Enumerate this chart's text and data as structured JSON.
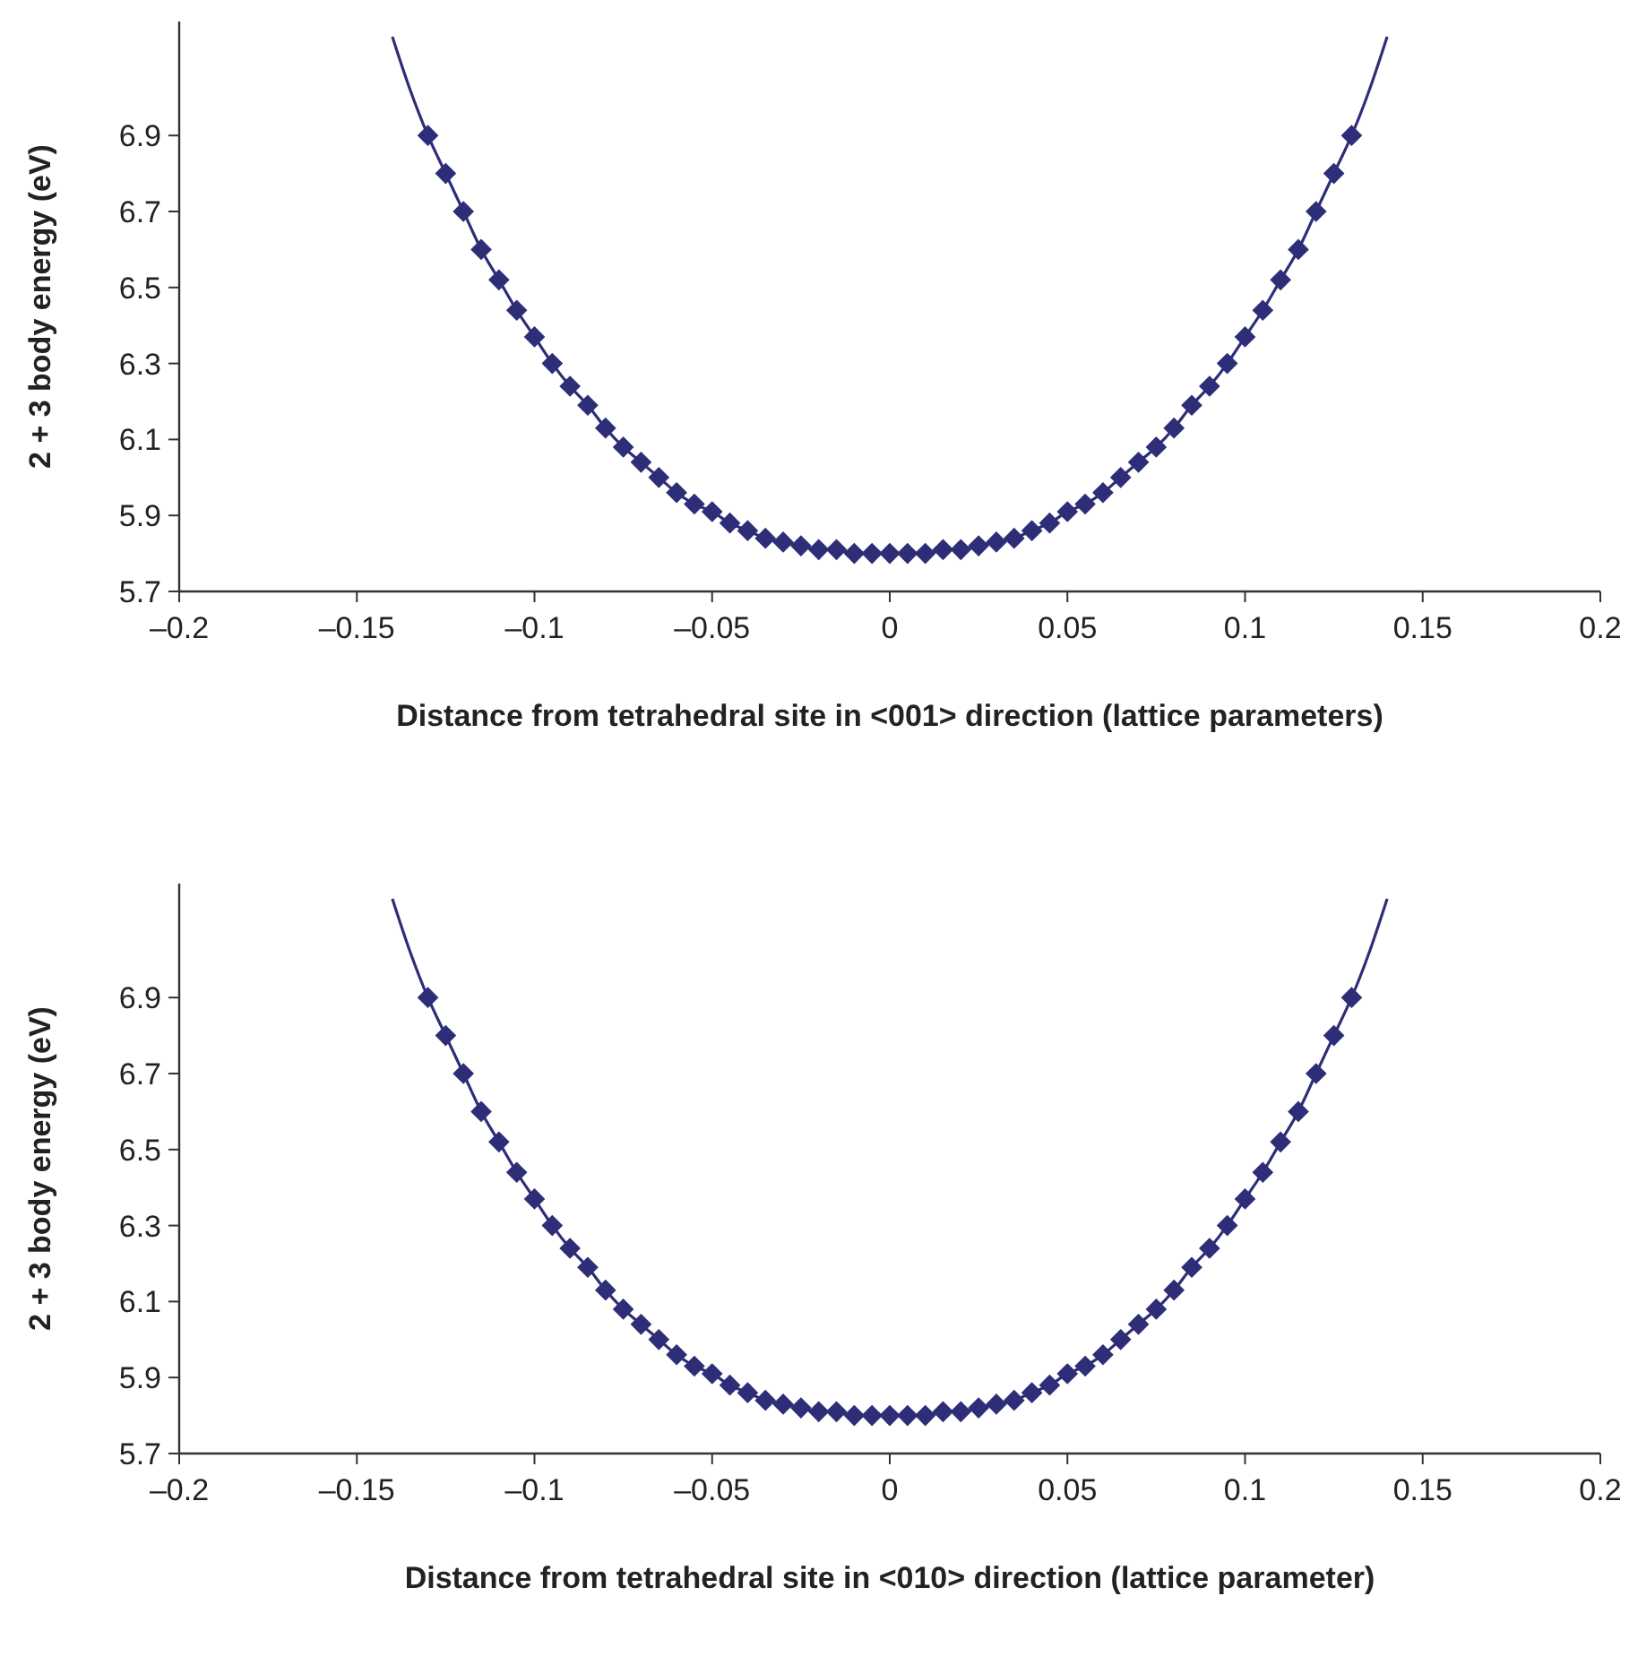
{
  "chart_data": [
    {
      "type": "scatter",
      "xlabel": "Distance from tetrahedral site in <001> direction (lattice parameters)",
      "ylabel": "2 + 3 body energy (eV)",
      "xlim": [
        -0.2,
        0.2
      ],
      "ylim": [
        5.7,
        7.2
      ],
      "xticks": [
        {
          "value": -0.2,
          "label": "–0.2"
        },
        {
          "value": -0.15,
          "label": "–0.15"
        },
        {
          "value": -0.1,
          "label": "–0.1"
        },
        {
          "value": -0.05,
          "label": "–0.05"
        },
        0,
        0.05,
        0.1,
        0.15,
        0.2
      ],
      "yticks": [
        5.7,
        5.9,
        6.1,
        6.3,
        6.5,
        6.7,
        6.9
      ],
      "grid": false,
      "series": [
        {
          "type": "line",
          "color": "#2e2d78",
          "marker": "none",
          "line_style": "solid",
          "x": [
            -0.14,
            -0.135,
            -0.13,
            -0.125,
            -0.12,
            -0.115,
            -0.11,
            -0.105,
            -0.1,
            -0.095,
            -0.09,
            -0.085,
            -0.08,
            -0.075,
            -0.07,
            -0.065,
            -0.06,
            -0.055,
            -0.05,
            -0.045,
            -0.04,
            -0.035,
            -0.03,
            -0.025,
            -0.02,
            -0.015,
            -0.01,
            -0.005,
            0,
            0.005,
            0.01,
            0.015,
            0.02,
            0.025,
            0.03,
            0.035,
            0.04,
            0.045,
            0.05,
            0.055,
            0.06,
            0.065,
            0.07,
            0.075,
            0.08,
            0.085,
            0.09,
            0.095,
            0.1,
            0.105,
            0.11,
            0.115,
            0.12,
            0.125,
            0.13,
            0.135,
            0.14
          ],
          "values": [
            7.16,
            7.02,
            6.9,
            6.8,
            6.7,
            6.6,
            6.52,
            6.44,
            6.37,
            6.3,
            6.24,
            6.19,
            6.13,
            6.08,
            6.04,
            6.0,
            5.96,
            5.93,
            5.91,
            5.88,
            5.86,
            5.84,
            5.83,
            5.82,
            5.81,
            5.81,
            5.8,
            5.8,
            5.8,
            5.8,
            5.8,
            5.81,
            5.81,
            5.82,
            5.83,
            5.84,
            5.86,
            5.88,
            5.91,
            5.93,
            5.96,
            6.0,
            6.04,
            6.08,
            6.13,
            6.19,
            6.24,
            6.3,
            6.37,
            6.44,
            6.52,
            6.6,
            6.7,
            6.8,
            6.9,
            7.02,
            7.16
          ]
        },
        {
          "color": "#2e2d78",
          "marker": "diamond",
          "x": [
            -0.13,
            -0.125,
            -0.12,
            -0.115,
            -0.11,
            -0.105,
            -0.1,
            -0.095,
            -0.09,
            -0.085,
            -0.08,
            -0.075,
            -0.07,
            -0.065,
            -0.06,
            -0.055,
            -0.05,
            -0.045,
            -0.04,
            -0.035,
            -0.03,
            -0.025,
            -0.02,
            -0.015,
            -0.01,
            -0.005,
            0,
            0.005,
            0.01,
            0.015,
            0.02,
            0.025,
            0.03,
            0.035,
            0.04,
            0.045,
            0.05,
            0.055,
            0.06,
            0.065,
            0.07,
            0.075,
            0.08,
            0.085,
            0.09,
            0.095,
            0.1,
            0.105,
            0.11,
            0.115,
            0.12,
            0.125,
            0.13
          ],
          "values": [
            6.9,
            6.8,
            6.7,
            6.6,
            6.52,
            6.44,
            6.37,
            6.3,
            6.24,
            6.19,
            6.13,
            6.08,
            6.04,
            6.0,
            5.96,
            5.93,
            5.91,
            5.88,
            5.86,
            5.84,
            5.83,
            5.82,
            5.81,
            5.81,
            5.8,
            5.8,
            5.8,
            5.8,
            5.8,
            5.81,
            5.81,
            5.82,
            5.83,
            5.84,
            5.86,
            5.88,
            5.91,
            5.93,
            5.96,
            6.0,
            6.04,
            6.08,
            6.13,
            6.19,
            6.24,
            6.3,
            6.37,
            6.44,
            6.52,
            6.6,
            6.7,
            6.8,
            6.9
          ]
        }
      ]
    },
    {
      "type": "scatter",
      "xlabel": "Distance from tetrahedral site in <010> direction (lattice parameter)",
      "ylabel": "2 + 3 body energy (eV)",
      "xlim": [
        -0.2,
        0.2
      ],
      "ylim": [
        5.7,
        7.2
      ],
      "xticks": [
        {
          "value": -0.2,
          "label": "–0.2"
        },
        {
          "value": -0.15,
          "label": "–0.15"
        },
        {
          "value": -0.1,
          "label": "–0.1"
        },
        {
          "value": -0.05,
          "label": "–0.05"
        },
        0,
        0.05,
        0.1,
        0.15,
        0.2
      ],
      "yticks": [
        5.7,
        5.9,
        6.1,
        6.3,
        6.5,
        6.7,
        6.9
      ],
      "grid": false,
      "series": [
        {
          "type": "line",
          "color": "#2e2d78",
          "marker": "none",
          "line_style": "solid",
          "x": [
            -0.14,
            -0.135,
            -0.13,
            -0.125,
            -0.12,
            -0.115,
            -0.11,
            -0.105,
            -0.1,
            -0.095,
            -0.09,
            -0.085,
            -0.08,
            -0.075,
            -0.07,
            -0.065,
            -0.06,
            -0.055,
            -0.05,
            -0.045,
            -0.04,
            -0.035,
            -0.03,
            -0.025,
            -0.02,
            -0.015,
            -0.01,
            -0.005,
            0,
            0.005,
            0.01,
            0.015,
            0.02,
            0.025,
            0.03,
            0.035,
            0.04,
            0.045,
            0.05,
            0.055,
            0.06,
            0.065,
            0.07,
            0.075,
            0.08,
            0.085,
            0.09,
            0.095,
            0.1,
            0.105,
            0.11,
            0.115,
            0.12,
            0.125,
            0.13,
            0.135,
            0.14
          ],
          "values": [
            7.16,
            7.02,
            6.9,
            6.8,
            6.7,
            6.6,
            6.52,
            6.44,
            6.37,
            6.3,
            6.24,
            6.19,
            6.13,
            6.08,
            6.04,
            6.0,
            5.96,
            5.93,
            5.91,
            5.88,
            5.86,
            5.84,
            5.83,
            5.82,
            5.81,
            5.81,
            5.8,
            5.8,
            5.8,
            5.8,
            5.8,
            5.81,
            5.81,
            5.82,
            5.83,
            5.84,
            5.86,
            5.88,
            5.91,
            5.93,
            5.96,
            6.0,
            6.04,
            6.08,
            6.13,
            6.19,
            6.24,
            6.3,
            6.37,
            6.44,
            6.52,
            6.6,
            6.7,
            6.8,
            6.9,
            7.02,
            7.16
          ]
        },
        {
          "color": "#2e2d78",
          "marker": "diamond",
          "x": [
            -0.13,
            -0.125,
            -0.12,
            -0.115,
            -0.11,
            -0.105,
            -0.1,
            -0.095,
            -0.09,
            -0.085,
            -0.08,
            -0.075,
            -0.07,
            -0.065,
            -0.06,
            -0.055,
            -0.05,
            -0.045,
            -0.04,
            -0.035,
            -0.03,
            -0.025,
            -0.02,
            -0.015,
            -0.01,
            -0.005,
            0,
            0.005,
            0.01,
            0.015,
            0.02,
            0.025,
            0.03,
            0.035,
            0.04,
            0.045,
            0.05,
            0.055,
            0.06,
            0.065,
            0.07,
            0.075,
            0.08,
            0.085,
            0.09,
            0.095,
            0.1,
            0.105,
            0.11,
            0.115,
            0.12,
            0.125,
            0.13
          ],
          "values": [
            6.9,
            6.8,
            6.7,
            6.6,
            6.52,
            6.44,
            6.37,
            6.3,
            6.24,
            6.19,
            6.13,
            6.08,
            6.04,
            6.0,
            5.96,
            5.93,
            5.91,
            5.88,
            5.86,
            5.84,
            5.83,
            5.82,
            5.81,
            5.81,
            5.8,
            5.8,
            5.8,
            5.8,
            5.8,
            5.81,
            5.81,
            5.82,
            5.83,
            5.84,
            5.86,
            5.88,
            5.91,
            5.93,
            5.96,
            6.0,
            6.04,
            6.08,
            6.13,
            6.19,
            6.24,
            6.3,
            6.37,
            6.44,
            6.52,
            6.6,
            6.7,
            6.8,
            6.9
          ]
        }
      ]
    }
  ]
}
